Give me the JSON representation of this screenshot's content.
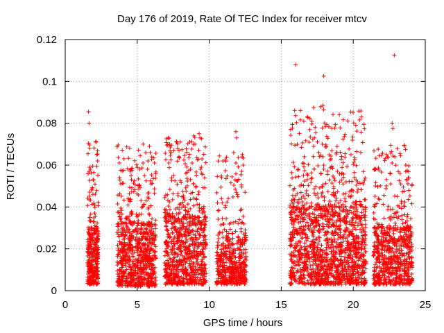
{
  "chart_data": {
    "type": "scatter",
    "title": "Day 176 of 2019, Rate Of TEC Index for receiver mtcv",
    "xlabel": "GPS time / hours",
    "ylabel": "ROTI / TECUs",
    "xlim": [
      0,
      25
    ],
    "ylim": [
      0,
      0.12
    ],
    "xticks": [
      0,
      5,
      10,
      15,
      20,
      25
    ],
    "xtick_labels": [
      "0",
      "5",
      "10",
      "15",
      "20",
      "25"
    ],
    "yticks": [
      0,
      0.02,
      0.04,
      0.06,
      0.08,
      0.1,
      0.12
    ],
    "ytick_labels": [
      "0",
      "0.02",
      "0.04",
      "0.06",
      "0.08",
      "0.1",
      "0.12"
    ],
    "grid": true,
    "marker": "+",
    "marker_color": "#ff0000",
    "series": [
      {
        "name": "ROTI",
        "clusters": [
          {
            "x_range": [
              1.55,
              2.3
            ],
            "y_base": [
              0.003,
              0.03
            ],
            "y_peak": [
              0.03,
              0.072
            ],
            "count": 330
          },
          {
            "x_range": [
              3.6,
              6.3
            ],
            "y_base": [
              0.002,
              0.032
            ],
            "y_peak": [
              0.032,
              0.07
            ],
            "count": 820
          },
          {
            "x_range": [
              6.9,
              9.8
            ],
            "y_base": [
              0.003,
              0.035
            ],
            "y_peak": [
              0.035,
              0.074
            ],
            "count": 850
          },
          {
            "x_range": [
              10.5,
              12.6
            ],
            "y_base": [
              0.003,
              0.025
            ],
            "y_peak": [
              0.025,
              0.065
            ],
            "count": 500
          },
          {
            "x_range": [
              15.6,
              20.9
            ],
            "y_base": [
              0.003,
              0.04
            ],
            "y_peak": [
              0.04,
              0.088
            ],
            "count": 1500
          },
          {
            "x_range": [
              21.4,
              24.1
            ],
            "y_base": [
              0.003,
              0.03
            ],
            "y_peak": [
              0.03,
              0.07
            ],
            "count": 700
          }
        ],
        "points": [
          {
            "x": 1.62,
            "y": 0.0855
          },
          {
            "x": 1.65,
            "y": 0.08
          },
          {
            "x": 1.62,
            "y": 0.0705
          },
          {
            "x": 1.7,
            "y": 0.068
          },
          {
            "x": 2.15,
            "y": 0.071
          },
          {
            "x": 2.2,
            "y": 0.065
          },
          {
            "x": 2.25,
            "y": 0.062
          },
          {
            "x": 1.75,
            "y": 0.058
          },
          {
            "x": 1.7,
            "y": 0.059
          },
          {
            "x": 5.4,
            "y": 0.061
          },
          {
            "x": 5.5,
            "y": 0.055
          },
          {
            "x": 5.85,
            "y": 0.069
          },
          {
            "x": 5.9,
            "y": 0.066
          },
          {
            "x": 5.75,
            "y": 0.062
          },
          {
            "x": 4.6,
            "y": 0.053
          },
          {
            "x": 3.85,
            "y": 0.051
          },
          {
            "x": 7.15,
            "y": 0.073
          },
          {
            "x": 7.25,
            "y": 0.07
          },
          {
            "x": 7.35,
            "y": 0.066
          },
          {
            "x": 7.2,
            "y": 0.061
          },
          {
            "x": 7.75,
            "y": 0.071
          },
          {
            "x": 7.8,
            "y": 0.068
          },
          {
            "x": 7.9,
            "y": 0.064
          },
          {
            "x": 9.3,
            "y": 0.075
          },
          {
            "x": 9.35,
            "y": 0.073
          },
          {
            "x": 9.5,
            "y": 0.063
          },
          {
            "x": 9.45,
            "y": 0.059
          },
          {
            "x": 9.4,
            "y": 0.058
          },
          {
            "x": 8.7,
            "y": 0.058
          },
          {
            "x": 11.85,
            "y": 0.076
          },
          {
            "x": 11.9,
            "y": 0.073
          },
          {
            "x": 11.7,
            "y": 0.066
          },
          {
            "x": 12.3,
            "y": 0.065
          },
          {
            "x": 12.35,
            "y": 0.06
          },
          {
            "x": 12.25,
            "y": 0.057
          },
          {
            "x": 11.85,
            "y": 0.061
          },
          {
            "x": 11.8,
            "y": 0.053
          },
          {
            "x": 10.9,
            "y": 0.042
          },
          {
            "x": 16.0,
            "y": 0.108
          },
          {
            "x": 15.95,
            "y": 0.0695
          },
          {
            "x": 16.2,
            "y": 0.0545
          },
          {
            "x": 16.6,
            "y": 0.064
          },
          {
            "x": 16.5,
            "y": 0.061
          },
          {
            "x": 17.35,
            "y": 0.078
          },
          {
            "x": 17.4,
            "y": 0.0755
          },
          {
            "x": 17.3,
            "y": 0.073
          },
          {
            "x": 17.25,
            "y": 0.069
          },
          {
            "x": 17.6,
            "y": 0.066
          },
          {
            "x": 17.95,
            "y": 0.1025
          },
          {
            "x": 17.9,
            "y": 0.0885
          },
          {
            "x": 17.95,
            "y": 0.0865
          },
          {
            "x": 17.85,
            "y": 0.07
          },
          {
            "x": 17.9,
            "y": 0.064
          },
          {
            "x": 17.95,
            "y": 0.06
          },
          {
            "x": 18.45,
            "y": 0.063
          },
          {
            "x": 18.5,
            "y": 0.059
          },
          {
            "x": 18.9,
            "y": 0.057
          },
          {
            "x": 19.5,
            "y": 0.052
          },
          {
            "x": 20.3,
            "y": 0.052
          },
          {
            "x": 20.7,
            "y": 0.051
          },
          {
            "x": 21.8,
            "y": 0.0645
          },
          {
            "x": 21.75,
            "y": 0.044
          },
          {
            "x": 22.85,
            "y": 0.1125
          },
          {
            "x": 22.7,
            "y": 0.08
          },
          {
            "x": 22.75,
            "y": 0.0775
          },
          {
            "x": 22.6,
            "y": 0.0695
          },
          {
            "x": 22.65,
            "y": 0.0665
          },
          {
            "x": 22.7,
            "y": 0.061
          },
          {
            "x": 22.3,
            "y": 0.065
          },
          {
            "x": 23.25,
            "y": 0.0655
          },
          {
            "x": 23.25,
            "y": 0.056
          },
          {
            "x": 23.3,
            "y": 0.051
          },
          {
            "x": 23.2,
            "y": 0.0525
          }
        ]
      }
    ]
  }
}
